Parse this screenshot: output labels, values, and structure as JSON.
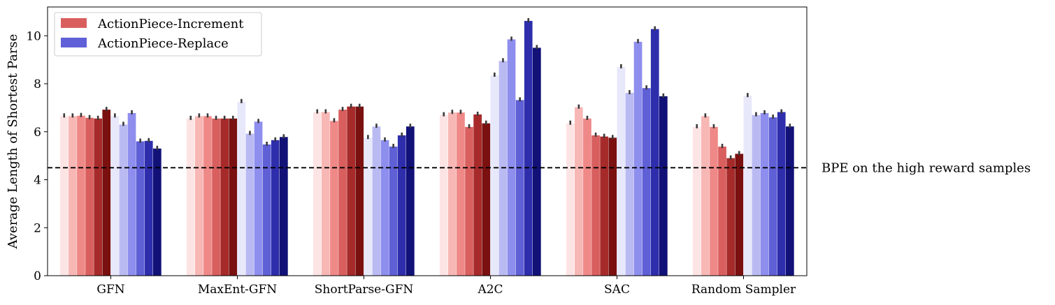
{
  "chart_data": {
    "type": "bar",
    "title": "",
    "xlabel": "",
    "ylabel": "Average Length of Shortest Parse",
    "ylim": [
      0,
      11.2
    ],
    "yticks": [
      0,
      2,
      4,
      6,
      8,
      10
    ],
    "grid": false,
    "legend_placement": "top-left",
    "legend": [
      {
        "name": "ActionPiece-Increment",
        "color": "#d95f5f"
      },
      {
        "name": "ActionPiece-Replace",
        "color": "#6060d8"
      }
    ],
    "categories": [
      "GFN",
      "MaxEnt-GFN",
      "ShortParse-GFN",
      "A2C",
      "SAC",
      "Random Sampler"
    ],
    "increment_colors": [
      "#fde4e4",
      "#f7b7b5",
      "#ef8987",
      "#d95f5f",
      "#a72a2a",
      "#7a1010"
    ],
    "replace_colors": [
      "#e8e8fb",
      "#babaf3",
      "#8e8eee",
      "#5f5fd6",
      "#2e2eac",
      "#111177"
    ],
    "increment_values": [
      [
        6.65,
        6.65,
        6.67,
        6.58,
        6.55,
        6.92
      ],
      [
        6.55,
        6.65,
        6.65,
        6.55,
        6.55,
        6.55
      ],
      [
        6.82,
        6.82,
        6.45,
        6.92,
        7.05,
        7.05
      ],
      [
        6.7,
        6.8,
        6.8,
        6.2,
        6.72,
        6.35
      ],
      [
        6.35,
        7.02,
        6.55,
        5.85,
        5.8,
        5.75
      ],
      [
        6.2,
        6.65,
        6.2,
        5.38,
        4.9,
        5.08
      ]
    ],
    "replace_values": [
      [
        6.65,
        6.3,
        6.78,
        5.6,
        5.62,
        5.3
      ],
      [
        7.25,
        5.92,
        6.42,
        5.47,
        5.65,
        5.78
      ],
      [
        5.75,
        6.22,
        5.65,
        5.38,
        5.85,
        6.22
      ],
      [
        8.35,
        8.95,
        9.85,
        7.32,
        10.62,
        9.5
      ],
      [
        8.7,
        7.62,
        9.75,
        7.82,
        10.28,
        7.48
      ],
      [
        7.5,
        6.7,
        6.78,
        6.6,
        6.82,
        6.22
      ]
    ],
    "reference_line": {
      "value": 4.5,
      "style": "dashed",
      "label": "BPE on the high reward samples"
    }
  }
}
